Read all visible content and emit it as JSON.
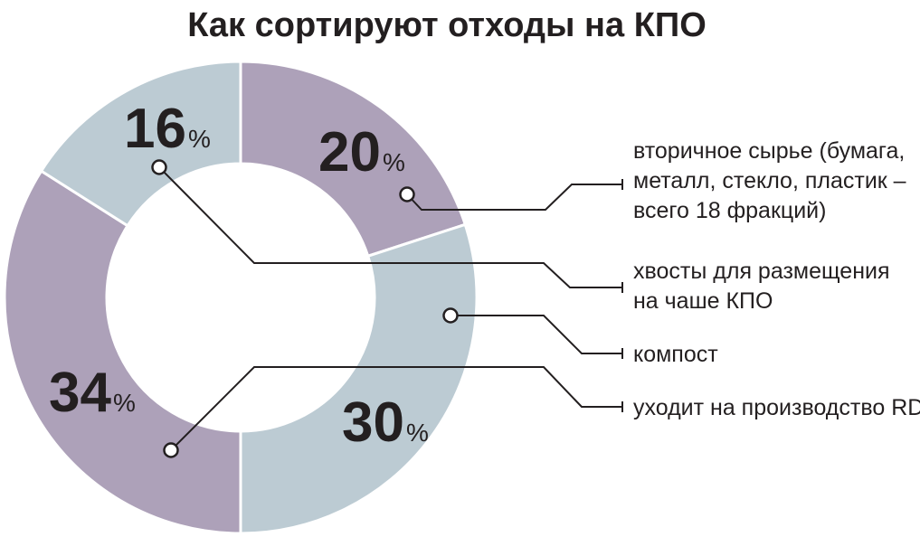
{
  "title": "Как сортируют отходы на КПО",
  "percent_sign": "%",
  "colors": {
    "purple": "#ada1b9",
    "blue": "#bccbd3",
    "text": "#231f20"
  },
  "chart_data": {
    "type": "pie",
    "title": "Как сортируют отходы на КПО",
    "slices": [
      {
        "value": 20,
        "label": "20",
        "color": "#ada1b9",
        "legend": [
          "вторичное сырье (бумага,",
          "металл, стекло, пластик –",
          "всего 18 фракций)"
        ]
      },
      {
        "value": 30,
        "label": "30",
        "color": "#bccbd3",
        "legend": [
          "компост"
        ]
      },
      {
        "value": 34,
        "label": "34",
        "color": "#ada1b9",
        "legend": [
          "уходит на производство RDF"
        ]
      },
      {
        "value": 16,
        "label": "16",
        "color": "#bccbd3",
        "legend": [
          "хвосты для размещения",
          "на чаше КПО"
        ]
      }
    ]
  }
}
